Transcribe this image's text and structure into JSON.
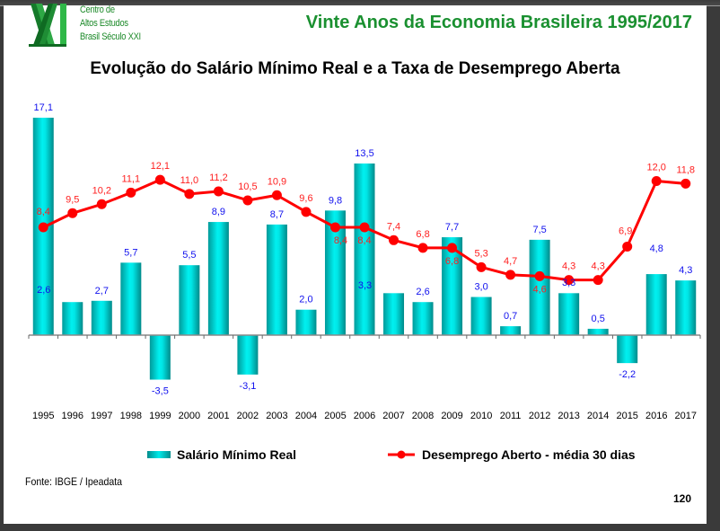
{
  "header": {
    "logo_lines": [
      "Centro de",
      "Altos Estudos",
      "Brasil Século XXI"
    ],
    "series_title": "Vinte Anos da Economia Brasileira 1995/2017"
  },
  "footer": {
    "source": "Fonte: IBGE / Ipeadata",
    "page_number": "120"
  },
  "colors": {
    "bar": "#00d4d4",
    "line": "#ff0000",
    "bar_label": "#1010ee",
    "line_label": "#ff2020",
    "title_green": "#1a9030"
  },
  "chart_data": {
    "type": "bar",
    "title": "Evolução do Salário Mínimo Real e a Taxa de Desemprego Aberta",
    "xlabel": "",
    "ylabel": "",
    "grid": false,
    "legend_position": "bottom",
    "categories": [
      "1995",
      "1996",
      "1997",
      "1998",
      "1999",
      "2000",
      "2001",
      "2002",
      "2003",
      "2004",
      "2005",
      "2006",
      "2007",
      "2008",
      "2009",
      "2010",
      "2011",
      "2012",
      "2013",
      "2014",
      "2015",
      "2016",
      "2017"
    ],
    "series": [
      {
        "name": "Salário Mínimo Real",
        "type": "bar",
        "values": [
          17.1,
          2.6,
          2.7,
          5.7,
          -3.5,
          5.5,
          8.9,
          -3.1,
          8.7,
          2.0,
          9.8,
          13.5,
          3.3,
          2.6,
          7.7,
          3.0,
          0.7,
          7.5,
          3.3,
          0.5,
          -2.2,
          4.8,
          4.3
        ],
        "labels": [
          "17,1",
          "2,6",
          "2,7",
          "5,7",
          "-3,5",
          "5,5",
          "8,9",
          "-3,1",
          "8,7",
          "2,0",
          "9,8",
          "13,5",
          "3,3",
          "2,6",
          "7,7",
          "3,0",
          "0,7",
          "7,5",
          "3,3",
          "0,5",
          "-2,2",
          "4,8",
          "4,3"
        ]
      },
      {
        "name": "Desemprego Aberto - média 30 dias",
        "type": "line",
        "values": [
          8.4,
          9.5,
          10.2,
          11.1,
          12.1,
          11.0,
          11.2,
          10.5,
          10.9,
          9.6,
          8.4,
          8.4,
          7.4,
          6.8,
          6.8,
          5.3,
          4.7,
          4.6,
          4.3,
          4.3,
          6.9,
          12.0,
          11.8
        ],
        "labels": [
          "8,4",
          "9,5",
          "10,2",
          "11,1",
          "12,1",
          "11,0",
          "11,2",
          "10,5",
          "10,9",
          "9,6",
          "8,4",
          "8,4",
          "7,4",
          "6,8",
          "6,8",
          "5,3",
          "4,7",
          "4,6",
          "4,3",
          "4,3",
          "6,9",
          "12,0",
          "11,8"
        ]
      }
    ]
  }
}
